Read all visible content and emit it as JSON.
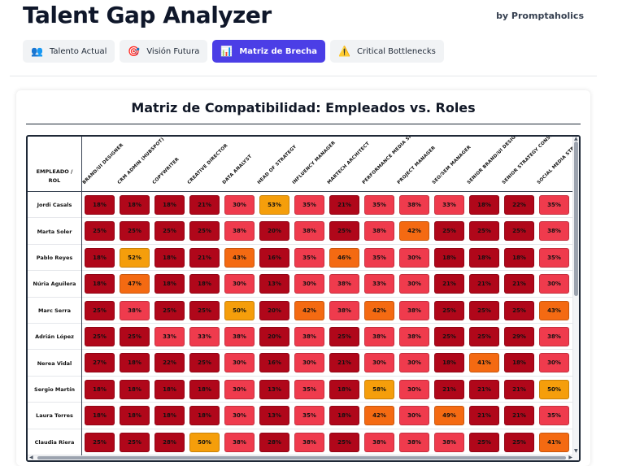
{
  "header": {
    "title": "Talent Gap Analyzer",
    "byline": "by Promptaholics"
  },
  "tabs": [
    {
      "icon": "👥",
      "icon_name": "people-icon",
      "label": "Talento Actual",
      "active": false
    },
    {
      "icon": "🎯",
      "icon_name": "target-icon",
      "label": "Visión Futura",
      "active": false
    },
    {
      "icon": "📊",
      "icon_name": "bar-chart-icon",
      "label": "Matriz de Brecha",
      "active": true
    },
    {
      "icon": "⚠️",
      "icon_name": "warning-icon",
      "label": "Critical Bottlenecks",
      "active": false
    }
  ],
  "matrix": {
    "title": "Matriz de Compatibilidad: Empleados vs. Roles",
    "corner_label_line1": "EMPLEADO /",
    "corner_label_line2": "ROL",
    "roles": [
      "BRAND/UI DESIGNER",
      "CRM ADMIN (HUBSPOT)",
      "COPYWRITER",
      "CREATIVE DIRECTOR",
      "DATA ANALYST",
      "HEAD OF STRATEGY",
      "INFLUENCY MANAGER",
      "MARTECH ARCHITECT",
      "PERFORMANCE MEDIA SPECIALIST",
      "PROJECT MANAGER",
      "SEO/SEM MANAGER",
      "SENIOR BRAND/UI DESIGNER",
      "SENIOR STRATEGY CONSULTANT",
      "SOCIAL MEDIA STRATEGIST"
    ],
    "employees": [
      {
        "name": "Jordi Casals",
        "values": [
          "18%",
          "18%",
          "18%",
          "21%",
          "30%",
          "53%",
          "35%",
          "21%",
          "35%",
          "38%",
          "33%",
          "18%",
          "22%",
          "35%"
        ]
      },
      {
        "name": "Marta Soler",
        "values": [
          "25%",
          "25%",
          "25%",
          "25%",
          "38%",
          "20%",
          "38%",
          "25%",
          "38%",
          "42%",
          "25%",
          "25%",
          "25%",
          "38%"
        ]
      },
      {
        "name": "Pablo Reyes",
        "values": [
          "18%",
          "52%",
          "18%",
          "21%",
          "43%",
          "16%",
          "35%",
          "46%",
          "35%",
          "30%",
          "18%",
          "18%",
          "18%",
          "35%"
        ]
      },
      {
        "name": "Núria Aguilera",
        "values": [
          "18%",
          "47%",
          "18%",
          "18%",
          "30%",
          "13%",
          "30%",
          "38%",
          "33%",
          "30%",
          "21%",
          "21%",
          "21%",
          "30%"
        ]
      },
      {
        "name": "Marc Serra",
        "values": [
          "25%",
          "38%",
          "25%",
          "25%",
          "50%",
          "20%",
          "42%",
          "38%",
          "42%",
          "38%",
          "25%",
          "25%",
          "25%",
          "43%"
        ]
      },
      {
        "name": "Adrián López",
        "values": [
          "25%",
          "25%",
          "33%",
          "33%",
          "38%",
          "20%",
          "38%",
          "25%",
          "38%",
          "38%",
          "25%",
          "25%",
          "29%",
          "38%"
        ]
      },
      {
        "name": "Nerea Vidal",
        "values": [
          "27%",
          "18%",
          "22%",
          "25%",
          "30%",
          "16%",
          "30%",
          "21%",
          "30%",
          "30%",
          "18%",
          "41%",
          "18%",
          "30%"
        ]
      },
      {
        "name": "Sergio Martín",
        "values": [
          "18%",
          "18%",
          "18%",
          "18%",
          "30%",
          "13%",
          "35%",
          "18%",
          "58%",
          "30%",
          "21%",
          "21%",
          "21%",
          "50%"
        ]
      },
      {
        "name": "Laura Torres",
        "values": [
          "18%",
          "18%",
          "18%",
          "18%",
          "30%",
          "13%",
          "35%",
          "18%",
          "42%",
          "30%",
          "49%",
          "21%",
          "21%",
          "35%"
        ]
      },
      {
        "name": "Claudia Riera",
        "values": [
          "25%",
          "25%",
          "28%",
          "50%",
          "38%",
          "28%",
          "38%",
          "25%",
          "38%",
          "38%",
          "38%",
          "25%",
          "25%",
          "41%"
        ]
      }
    ],
    "colors": {
      "low": "#b0071a",
      "mid": "#ef3b4d",
      "orange": "#f46a12",
      "amber": "#f59e0b"
    }
  }
}
